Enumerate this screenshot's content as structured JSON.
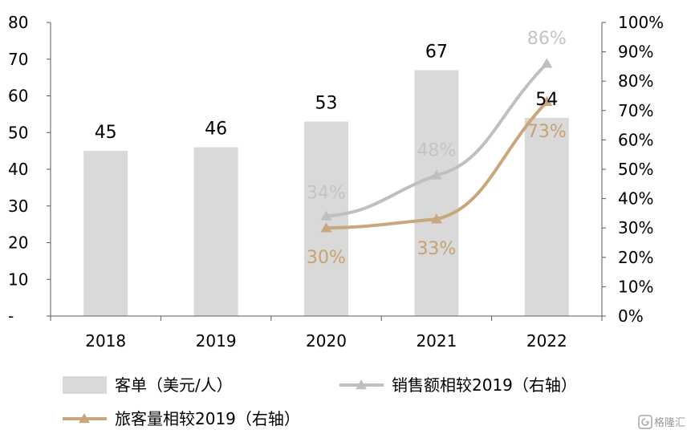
{
  "chart_data": {
    "type": "bar",
    "categories": [
      "2018",
      "2019",
      "2020",
      "2021",
      "2022"
    ],
    "left_axis": {
      "ylim": [
        0,
        80
      ],
      "ticks": [
        "-",
        "10",
        "20",
        "30",
        "40",
        "50",
        "60",
        "70",
        "80"
      ]
    },
    "right_axis": {
      "ylim": [
        0,
        100
      ],
      "ticks": [
        "0%",
        "10%",
        "20%",
        "30%",
        "40%",
        "50%",
        "60%",
        "70%",
        "80%",
        "90%",
        "100%"
      ]
    },
    "bars": {
      "name": "客单（美元/人）",
      "values": [
        45,
        46,
        53,
        67,
        54
      ],
      "labels": [
        "45",
        "46",
        "53",
        "67",
        "54"
      ],
      "color": "#d9d9d9"
    },
    "lines": [
      {
        "name": "销售额相较2019（右轴）",
        "values": [
          null,
          null,
          34,
          48,
          86
        ],
        "labels": [
          "",
          "",
          "34%",
          "48%",
          "86%"
        ],
        "color": "#bfbfbf",
        "label_color": "#c4c4c4"
      },
      {
        "name": "旅客量相较2019（右轴）",
        "values": [
          null,
          null,
          30,
          33,
          73
        ],
        "labels": [
          "",
          "",
          "30%",
          "33%",
          "73%"
        ],
        "color": "#c9a77c",
        "label_color": "#c9a070"
      }
    ],
    "grid": false,
    "legend_position": "bottom",
    "watermark": "格隆汇"
  }
}
